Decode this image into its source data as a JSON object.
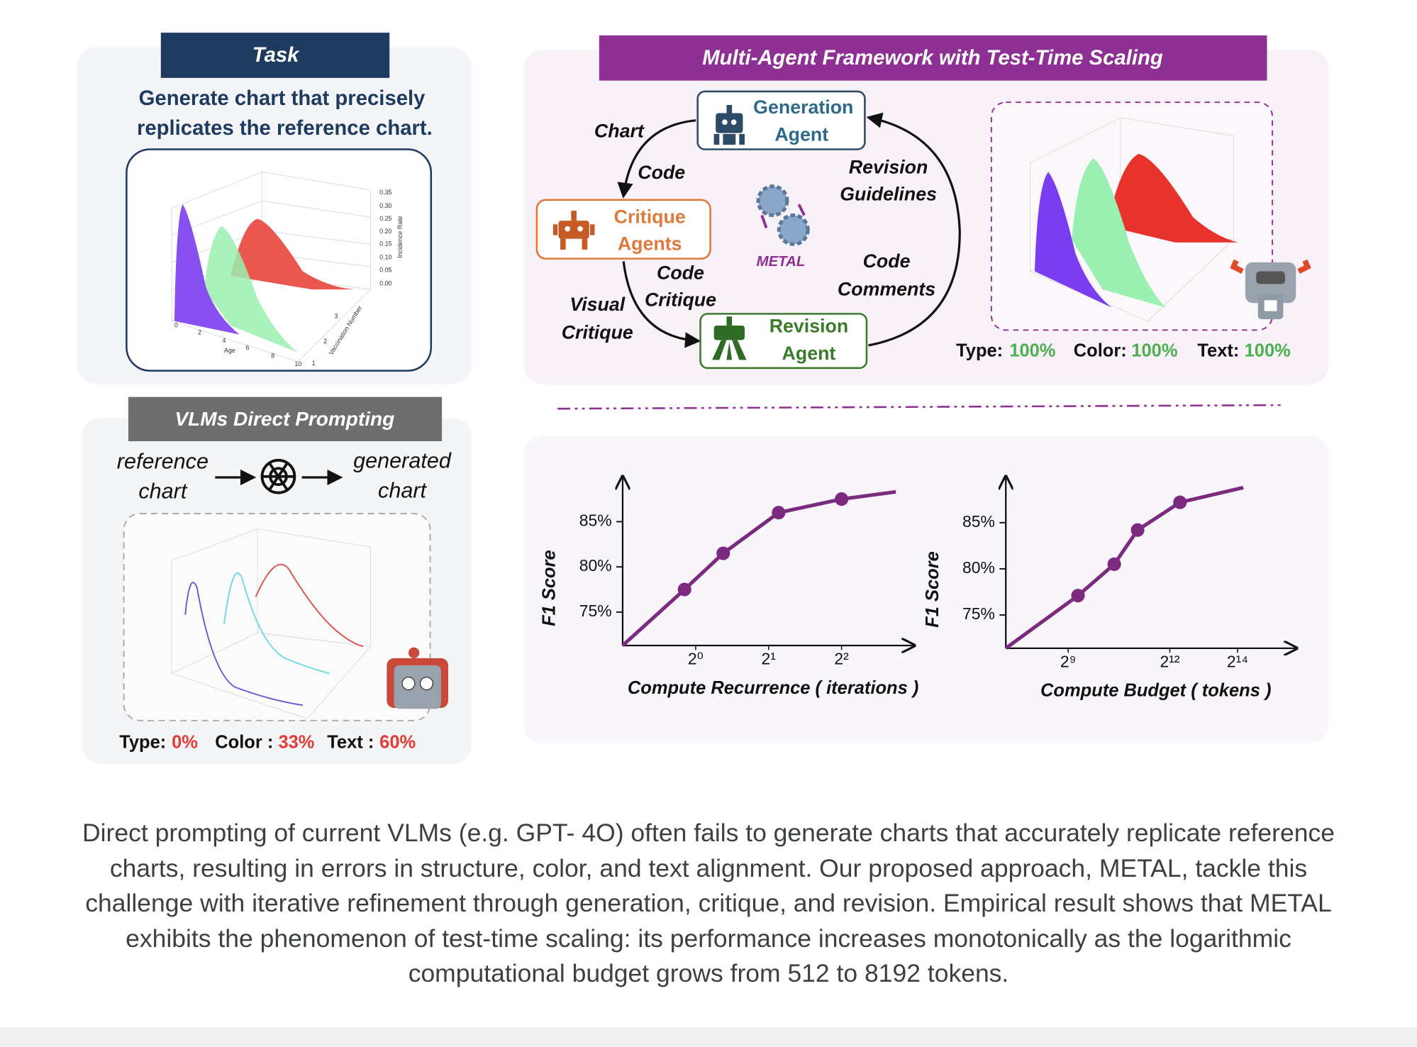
{
  "task": {
    "title": "Task",
    "text": [
      "Generate chart that precisely",
      "replicates the reference chart."
    ],
    "image": {
      "zticks": [
        "0.35",
        "0.30",
        "0.25",
        "0.20",
        "0.15",
        "0.10",
        "0.05",
        "0.00"
      ],
      "zlabel": "Incidence Rate",
      "xticks": [
        "0",
        "2",
        "4",
        "6",
        "8",
        "10"
      ],
      "xlabel": "Age",
      "yticks": [
        "1",
        "2",
        "3"
      ],
      "ylabel": "Vaccination Number"
    }
  },
  "framework": {
    "title": "Multi-Agent Framework with Test-Time Scaling",
    "generation": [
      "Generation",
      "Agent"
    ],
    "critique": [
      "Critique",
      "Agents"
    ],
    "revision": [
      "Revision",
      "Agent"
    ],
    "chart_code": [
      "Chart",
      "Code"
    ],
    "revision_guidelines": [
      "Revision",
      "Guidelines"
    ],
    "center": "METAL",
    "code_comments": [
      "Code",
      "Comments"
    ],
    "code_critique": [
      "Code",
      "Critique"
    ],
    "visual_critique": [
      "Visual",
      "Critique"
    ],
    "scores": [
      {
        "label": "Type:",
        "value": "100%"
      },
      {
        "label": "Color:",
        "value": "100%"
      },
      {
        "label": "Text:",
        "value": "100%"
      }
    ]
  },
  "direct": {
    "title": "VLMs Direct Prompting",
    "reference": [
      "reference",
      "chart"
    ],
    "generated": [
      "generated",
      "chart"
    ],
    "scores": [
      {
        "label": "Type:",
        "value": "0%"
      },
      {
        "label": "Color :",
        "value": "33%"
      },
      {
        "label": "Text :",
        "value": "60%"
      }
    ]
  },
  "chart_data": [
    {
      "type": "line",
      "xlabel": "Compute Recurrence ( iterations )",
      "ylabel": "F1 Score",
      "xscale": "log",
      "xlim": [
        0.5,
        8
      ],
      "ylim": [
        71.3,
        90
      ],
      "xticks": [
        {
          "value": 1,
          "label": "2⁰"
        },
        {
          "value": 2,
          "label": "2¹"
        },
        {
          "value": 4,
          "label": "2²"
        }
      ],
      "yticks": [
        {
          "value": 75,
          "label": "75%"
        },
        {
          "value": 80,
          "label": "80%"
        },
        {
          "value": 85,
          "label": "85%"
        }
      ],
      "series": [
        {
          "color": "#7b2a7f",
          "x": [
            0.5,
            0.9,
            1.3,
            2.2,
            4.0,
            6.7
          ],
          "values": [
            71.3,
            77.5,
            81.5,
            86,
            87.5,
            88.3
          ],
          "markers": [
            false,
            true,
            true,
            true,
            true,
            false
          ]
        }
      ]
    },
    {
      "type": "line",
      "xlabel": "Compute Budget ( tokens )",
      "ylabel": "F1 Score",
      "xscale": "log",
      "xlim": [
        143,
        55000
      ],
      "ylim": [
        71.4,
        90
      ],
      "xticks": [
        {
          "value": 512,
          "label": "2⁹"
        },
        {
          "value": 4096,
          "label": "2¹²"
        },
        {
          "value": 16384,
          "label": "2¹⁴"
        }
      ],
      "yticks": [
        {
          "value": 75,
          "label": "75%"
        },
        {
          "value": 80,
          "label": "80%"
        },
        {
          "value": 85,
          "label": "85%"
        }
      ],
      "series": [
        {
          "color": "#7b2a7f",
          "x": [
            143,
            626,
            1314,
            2120,
            5040,
            18400
          ],
          "values": [
            71.4,
            77.1,
            80.5,
            84.2,
            87.2,
            88.8
          ],
          "markers": [
            false,
            true,
            true,
            true,
            true,
            false
          ]
        }
      ]
    }
  ],
  "caption": "Direct prompting of current VLMs (e.g. GPT- 4O) often fails to generate charts that accurately replicate reference charts, resulting in errors in structure, color, and text alignment. Our proposed approach, METAL, tackle this challenge with iterative refinement through generation, critique, and revision. Empirical result shows that METAL exhibits the phenomenon of test-time scaling: its performance increases monotonically as the logarithmic computational budget grows from 512 to 8192 tokens."
}
